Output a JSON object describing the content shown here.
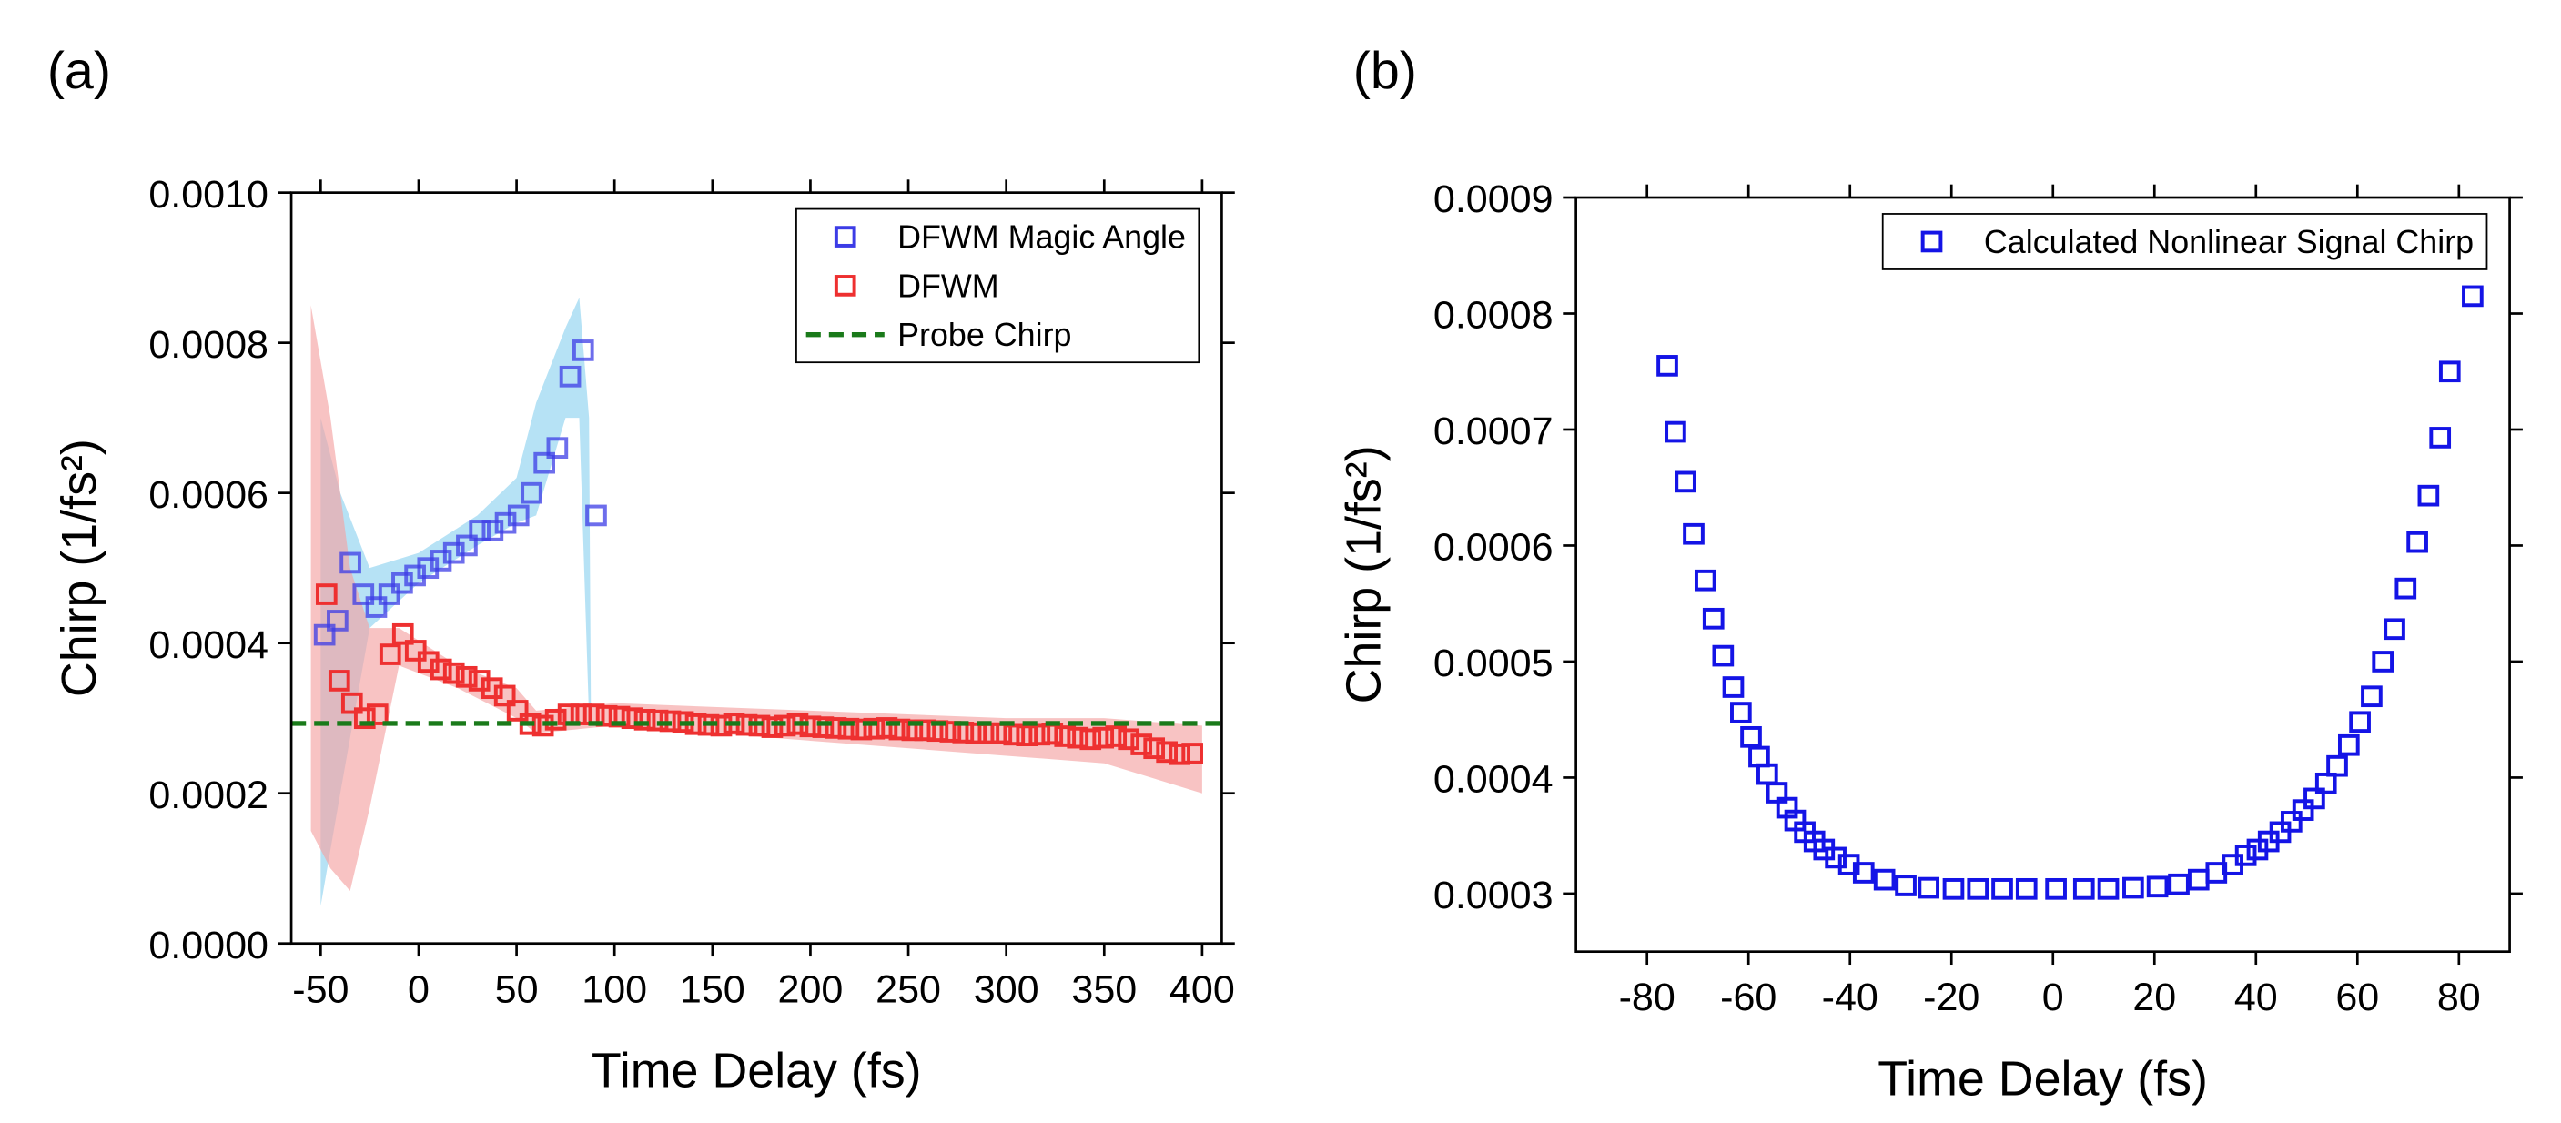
{
  "chart_data": [
    {
      "type": "scatter",
      "panel_label": "(a)",
      "x_label": "Time Delay (fs)",
      "y_label": "Chirp (1/fs²)",
      "xlim": [
        -65,
        410
      ],
      "xticks": [
        -50,
        0,
        50,
        100,
        150,
        200,
        250,
        300,
        350,
        400
      ],
      "ylim": [
        0,
        0.001
      ],
      "yticks": [
        {
          "value": 0,
          "label": "0.0000"
        },
        0.0002,
        0.0004,
        0.0006,
        0.0008,
        {
          "value": 0.001,
          "label": "0.0010"
        }
      ],
      "legend": "upper right",
      "series": [
        {
          "name": "DFWM Magic Angle",
          "color": "#3c3ce6",
          "marker": "square",
          "x": [
            -48,
            -41.4,
            -34.8,
            -28.2,
            -21.6,
            -15,
            -8.4,
            -1.8,
            4.8,
            11.4,
            18,
            24.6,
            31.2,
            37.8,
            44.4,
            51,
            57.6,
            64.2,
            70.8,
            77.4,
            84,
            90.6
          ],
          "values": [
            0.000411,
            0.00043,
            0.000507,
            0.000465,
            0.000448,
            0.000465,
            0.00048,
            0.00049,
            0.0005,
            0.00051,
            0.00052,
            0.00053,
            0.00055,
            0.00055,
            0.00056,
            0.00057,
            0.0006,
            0.00064,
            0.00066,
            0.000755,
            0.00079,
            0.00057
          ],
          "band_color": "#8fd3f0",
          "band_x": [
            -50,
            -40,
            -25,
            0,
            30,
            50,
            60,
            75,
            82,
            87,
            88
          ],
          "band_lower": [
            5e-05,
            0.0002,
            0.00042,
            0.00048,
            0.00053,
            0.00056,
            0.00057,
            0.0007,
            0.0007,
            0.0003,
            0.00029
          ],
          "band_upper": [
            0.0007,
            0.0006,
            0.0005,
            0.00052,
            0.00057,
            0.00062,
            0.00072,
            0.00082,
            0.00086,
            0.0007,
            0.00029
          ]
        },
        {
          "name": "DFWM",
          "color": "#ee3030",
          "marker": "square",
          "x": [
            -47,
            -40.5,
            -34,
            -27.5,
            -21,
            -14.5,
            -8,
            -1.5,
            5,
            11.5,
            18,
            24.5,
            31,
            37.5,
            44,
            50.5,
            57,
            63.5,
            70,
            76.5,
            83,
            89.5,
            96,
            102.5,
            109,
            115.5,
            122,
            128.5,
            135,
            141.5,
            148,
            154.5,
            161,
            167.5,
            174,
            180.5,
            187,
            193.5,
            200,
            206.5,
            213,
            219.5,
            226,
            232.5,
            239,
            245.5,
            252,
            258.5,
            265,
            271.5,
            278,
            284.5,
            291,
            297.5,
            304,
            310.5,
            317,
            323.5,
            330,
            336.5,
            343,
            349.5,
            356,
            362.5,
            369,
            375.5,
            382,
            388.5,
            395
          ],
          "values": [
            0.000465,
            0.00035,
            0.00032,
            0.0003,
            0.000305,
            0.000385,
            0.000412,
            0.00039,
            0.000375,
            0.000365,
            0.00036,
            0.000355,
            0.00035,
            0.00034,
            0.00033,
            0.00031,
            0.000292,
            0.00029,
            0.000298,
            0.000305,
            0.000305,
            0.000305,
            0.000303,
            0.000302,
            0.0003,
            0.000298,
            0.000297,
            0.000296,
            0.000295,
            0.000292,
            0.000291,
            0.00029,
            0.000293,
            0.000291,
            0.00029,
            0.000288,
            0.00029,
            0.000292,
            0.000289,
            0.000288,
            0.000287,
            0.000286,
            0.000285,
            0.000286,
            0.000287,
            0.000285,
            0.000284,
            0.000284,
            0.000283,
            0.000282,
            0.000281,
            0.00028,
            0.00028,
            0.00028,
            0.000278,
            0.000277,
            0.000278,
            0.000279,
            0.000276,
            0.000274,
            0.000272,
            0.000274,
            0.000276,
            0.000272,
            0.000265,
            0.00026,
            0.000255,
            0.000252,
            0.000253
          ],
          "band_color": "#f5a3a3",
          "band_x": [
            -55,
            -45,
            -35,
            -25,
            -10,
            20,
            50,
            60,
            100,
            200,
            300,
            350,
            400
          ],
          "band_lower": [
            0.00015,
            0.0001,
            7e-05,
            0.00018,
            0.00037,
            0.00034,
            0.0003,
            0.00028,
            0.00029,
            0.00027,
            0.00025,
            0.00024,
            0.0002
          ],
          "band_upper": [
            0.00085,
            0.0007,
            0.0005,
            0.00042,
            0.00042,
            0.00037,
            0.00034,
            0.00031,
            0.00032,
            0.00031,
            0.0003,
            0.0003,
            0.00029
          ]
        },
        {
          "name": "Probe Chirp",
          "type": "hline",
          "color": "#1a7a1a",
          "style": "dashed",
          "value": 0.000293
        }
      ]
    },
    {
      "type": "scatter",
      "panel_label": "(b)",
      "x_label": "Time Delay (fs)",
      "y_label": "Chirp (1/fs²)",
      "xlim": [
        -94,
        90
      ],
      "xticks": [
        -80,
        -60,
        -40,
        -20,
        0,
        20,
        40,
        60,
        80
      ],
      "ylim": [
        0.00025,
        0.0009
      ],
      "yticks": [
        0.0003,
        0.0004,
        0.0005,
        0.0006,
        0.0007,
        0.0008,
        0.0009
      ],
      "legend": "upper right",
      "series": [
        {
          "name": "Calculated Nonlinear Signal Chirp",
          "color": "#1414e6",
          "marker": "square",
          "x": [
            -76,
            -74.4,
            -72.4,
            -70.8,
            -68.5,
            -66.9,
            -65,
            -63,
            -61.5,
            -59.5,
            -57.9,
            -56.3,
            -54.4,
            -52.4,
            -50.8,
            -48.9,
            -47,
            -45.1,
            -42.8,
            -40.2,
            -37.3,
            -33.2,
            -29,
            -24.5,
            -19.6,
            -14.8,
            -10,
            -5.2,
            0.6,
            6.1,
            10.9,
            15.8,
            20.6,
            24.8,
            28.7,
            32.2,
            35.4,
            38,
            40.3,
            42.5,
            44.8,
            47,
            49.3,
            51.5,
            53.8,
            56,
            58.3,
            60.5,
            62.8,
            65,
            67.3,
            69.5,
            71.8,
            74,
            76.3,
            78.2,
            82.7
          ],
          "values": [
            0.000755,
            0.000698,
            0.000655,
            0.00061,
            0.00057,
            0.000537,
            0.000505,
            0.000478,
            0.000456,
            0.000435,
            0.000418,
            0.000403,
            0.000387,
            0.000374,
            0.000363,
            0.000353,
            0.000345,
            0.000338,
            0.000331,
            0.000325,
            0.000318,
            0.000312,
            0.000307,
            0.000305,
            0.000304,
            0.000304,
            0.000304,
            0.000304,
            0.000304,
            0.000304,
            0.000304,
            0.000305,
            0.000306,
            0.000308,
            0.000312,
            0.000318,
            0.000325,
            0.000333,
            0.000338,
            0.000345,
            0.000353,
            0.000362,
            0.000372,
            0.000382,
            0.000395,
            0.00041,
            0.000428,
            0.000448,
            0.00047,
            0.0005,
            0.000528,
            0.000563,
            0.000603,
            0.000643,
            0.000693,
            0.00075,
            0.000815
          ]
        }
      ]
    }
  ]
}
